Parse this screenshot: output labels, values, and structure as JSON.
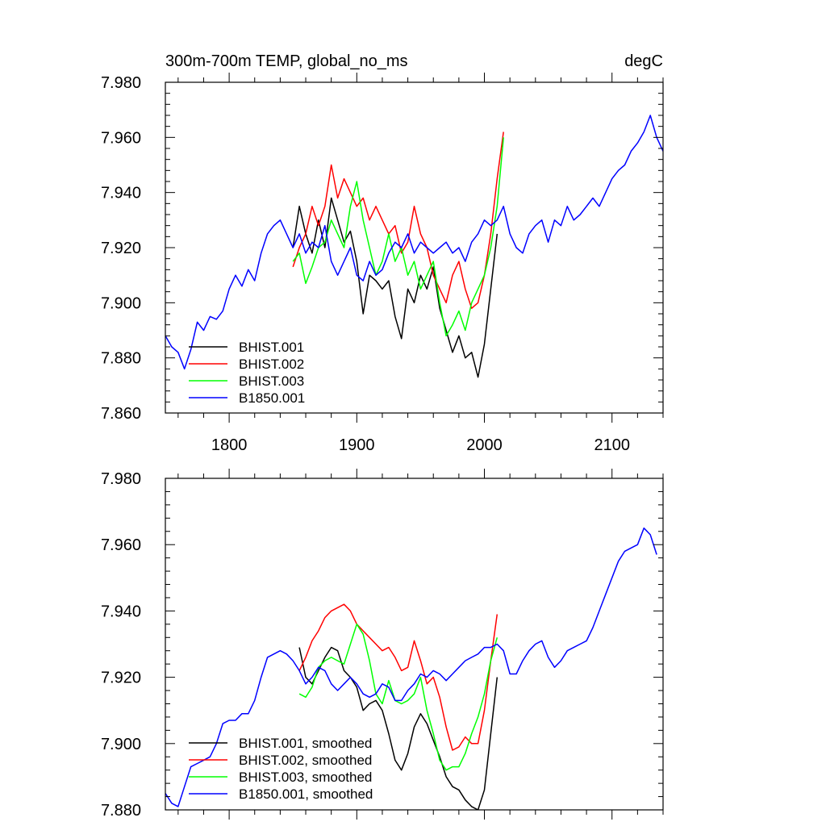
{
  "chart_data": [
    {
      "type": "line",
      "title": "300m-700m TEMP, global_no_ms",
      "units": "degC",
      "xlim": [
        1750,
        2140
      ],
      "ylim": [
        7.86,
        7.98
      ],
      "x_ticks": [
        1800,
        1900,
        2000,
        2100
      ],
      "x_tick_labels": [
        "1800",
        "1900",
        "2000",
        "2100"
      ],
      "y_ticks": [
        7.86,
        7.88,
        7.9,
        7.92,
        7.94,
        7.96,
        7.98
      ],
      "y_tick_labels": [
        "7.860",
        "7.880",
        "7.900",
        "7.920",
        "7.940",
        "7.960",
        "7.980"
      ],
      "legend_position": "bottom-left",
      "series": [
        {
          "name": "BHIST.001",
          "color": "#000000",
          "x": [
            1850,
            1855,
            1860,
            1865,
            1870,
            1875,
            1880,
            1885,
            1890,
            1895,
            1900,
            1905,
            1910,
            1915,
            1920,
            1925,
            1930,
            1935,
            1940,
            1945,
            1950,
            1955,
            1960,
            1965,
            1970,
            1975,
            1980,
            1985,
            1990,
            1995,
            2000,
            2005,
            2010
          ],
          "y": [
            7.92,
            7.935,
            7.925,
            7.918,
            7.93,
            7.92,
            7.938,
            7.93,
            7.922,
            7.926,
            7.915,
            7.896,
            7.91,
            7.908,
            7.905,
            7.908,
            7.895,
            7.887,
            7.905,
            7.9,
            7.91,
            7.905,
            7.913,
            7.898,
            7.89,
            7.882,
            7.888,
            7.88,
            7.882,
            7.873,
            7.885,
            7.905,
            7.925
          ]
        },
        {
          "name": "BHIST.002",
          "color": "#ff0000",
          "x": [
            1850,
            1855,
            1860,
            1865,
            1870,
            1875,
            1880,
            1885,
            1890,
            1895,
            1900,
            1905,
            1910,
            1915,
            1920,
            1925,
            1930,
            1935,
            1940,
            1945,
            1950,
            1955,
            1960,
            1965,
            1970,
            1975,
            1980,
            1985,
            1990,
            1995,
            2000,
            2005,
            2010,
            2015
          ],
          "y": [
            7.913,
            7.92,
            7.925,
            7.935,
            7.928,
            7.935,
            7.95,
            7.938,
            7.945,
            7.94,
            7.935,
            7.938,
            7.93,
            7.935,
            7.93,
            7.925,
            7.928,
            7.918,
            7.922,
            7.935,
            7.925,
            7.92,
            7.91,
            7.905,
            7.9,
            7.91,
            7.915,
            7.905,
            7.898,
            7.9,
            7.91,
            7.925,
            7.945,
            7.962
          ]
        },
        {
          "name": "BHIST.003",
          "color": "#00ff00",
          "x": [
            1850,
            1855,
            1860,
            1865,
            1870,
            1875,
            1880,
            1885,
            1890,
            1895,
            1900,
            1905,
            1910,
            1915,
            1920,
            1925,
            1930,
            1935,
            1940,
            1945,
            1950,
            1955,
            1960,
            1965,
            1970,
            1975,
            1980,
            1985,
            1990,
            1995,
            2000,
            2005,
            2010,
            2015
          ],
          "y": [
            7.915,
            7.918,
            7.907,
            7.913,
            7.92,
            7.922,
            7.93,
            7.925,
            7.92,
            7.935,
            7.944,
            7.93,
            7.92,
            7.91,
            7.915,
            7.925,
            7.915,
            7.92,
            7.91,
            7.915,
            7.905,
            7.91,
            7.915,
            7.9,
            7.888,
            7.892,
            7.897,
            7.89,
            7.9,
            7.905,
            7.91,
            7.92,
            7.935,
            7.96
          ]
        },
        {
          "name": "B1850.001",
          "color": "#0000ff",
          "x": [
            1750,
            1755,
            1760,
            1765,
            1770,
            1775,
            1780,
            1785,
            1790,
            1795,
            1800,
            1805,
            1810,
            1815,
            1820,
            1825,
            1830,
            1835,
            1840,
            1845,
            1850,
            1855,
            1860,
            1865,
            1870,
            1875,
            1880,
            1885,
            1890,
            1895,
            1900,
            1905,
            1910,
            1915,
            1920,
            1925,
            1930,
            1935,
            1940,
            1945,
            1950,
            1955,
            1960,
            1965,
            1970,
            1975,
            1980,
            1985,
            1990,
            1995,
            2000,
            2005,
            2010,
            2015,
            2020,
            2025,
            2030,
            2035,
            2040,
            2045,
            2050,
            2055,
            2060,
            2065,
            2070,
            2075,
            2080,
            2085,
            2090,
            2095,
            2100,
            2105,
            2110,
            2115,
            2120,
            2125,
            2130,
            2135,
            2140
          ],
          "y": [
            7.888,
            7.884,
            7.882,
            7.876,
            7.883,
            7.893,
            7.89,
            7.895,
            7.894,
            7.897,
            7.905,
            7.91,
            7.906,
            7.912,
            7.908,
            7.918,
            7.925,
            7.928,
            7.93,
            7.925,
            7.92,
            7.925,
            7.918,
            7.922,
            7.92,
            7.928,
            7.915,
            7.91,
            7.915,
            7.92,
            7.91,
            7.908,
            7.915,
            7.91,
            7.912,
            7.918,
            7.922,
            7.92,
            7.925,
            7.918,
            7.922,
            7.92,
            7.918,
            7.92,
            7.922,
            7.918,
            7.92,
            7.915,
            7.922,
            7.925,
            7.93,
            7.928,
            7.93,
            7.935,
            7.925,
            7.92,
            7.918,
            7.925,
            7.928,
            7.93,
            7.922,
            7.93,
            7.928,
            7.935,
            7.93,
            7.932,
            7.935,
            7.938,
            7.935,
            7.94,
            7.945,
            7.948,
            7.95,
            7.955,
            7.958,
            7.962,
            7.968,
            7.96,
            7.955
          ]
        }
      ]
    },
    {
      "type": "line",
      "xlim": [
        1750,
        2140
      ],
      "ylim": [
        7.88,
        7.98
      ],
      "x_ticks": [
        1800,
        1900,
        2000,
        2100
      ],
      "y_ticks": [
        7.88,
        7.9,
        7.92,
        7.94,
        7.96,
        7.98
      ],
      "y_tick_labels": [
        "7.880",
        "7.900",
        "7.920",
        "7.940",
        "7.960",
        "7.980"
      ],
      "legend_position": "bottom-left",
      "series": [
        {
          "name": "BHIST.001, smoothed",
          "color": "#000000",
          "x": [
            1855,
            1860,
            1865,
            1870,
            1875,
            1880,
            1885,
            1890,
            1895,
            1900,
            1905,
            1910,
            1915,
            1920,
            1925,
            1930,
            1935,
            1940,
            1945,
            1950,
            1955,
            1960,
            1965,
            1970,
            1975,
            1980,
            1985,
            1990,
            1995,
            2000,
            2005,
            2010
          ],
          "y": [
            7.929,
            7.92,
            7.918,
            7.922,
            7.926,
            7.929,
            7.928,
            7.922,
            7.92,
            7.917,
            7.91,
            7.912,
            7.913,
            7.91,
            7.903,
            7.895,
            7.892,
            7.897,
            7.905,
            7.909,
            7.906,
            7.901,
            7.896,
            7.89,
            7.887,
            7.886,
            7.883,
            7.881,
            7.88,
            7.886,
            7.903,
            7.92
          ]
        },
        {
          "name": "BHIST.002, smoothed",
          "color": "#ff0000",
          "x": [
            1855,
            1860,
            1865,
            1870,
            1875,
            1880,
            1885,
            1890,
            1895,
            1900,
            1905,
            1910,
            1915,
            1920,
            1925,
            1930,
            1935,
            1940,
            1945,
            1950,
            1955,
            1960,
            1965,
            1970,
            1975,
            1980,
            1985,
            1990,
            1995,
            2000,
            2005,
            2010
          ],
          "y": [
            7.922,
            7.926,
            7.931,
            7.934,
            7.938,
            7.94,
            7.941,
            7.942,
            7.94,
            7.936,
            7.934,
            7.932,
            7.93,
            7.928,
            7.929,
            7.926,
            7.922,
            7.923,
            7.931,
            7.925,
            7.918,
            7.92,
            7.914,
            7.905,
            7.898,
            7.899,
            7.902,
            7.9,
            7.9,
            7.91,
            7.925,
            7.939
          ]
        },
        {
          "name": "BHIST.003, smoothed",
          "color": "#00ff00",
          "x": [
            1855,
            1860,
            1865,
            1870,
            1875,
            1880,
            1885,
            1890,
            1895,
            1900,
            1905,
            1910,
            1915,
            1920,
            1925,
            1930,
            1935,
            1940,
            1945,
            1950,
            1955,
            1960,
            1965,
            1970,
            1975,
            1980,
            1985,
            1990,
            1995,
            2000,
            2005,
            2010
          ],
          "y": [
            7.915,
            7.914,
            7.917,
            7.923,
            7.925,
            7.926,
            7.925,
            7.924,
            7.93,
            7.936,
            7.933,
            7.925,
            7.915,
            7.912,
            7.919,
            7.913,
            7.912,
            7.913,
            7.915,
            7.92,
            7.91,
            7.903,
            7.895,
            7.892,
            7.893,
            7.893,
            7.897,
            7.903,
            7.908,
            7.915,
            7.925,
            7.932
          ]
        },
        {
          "name": "B1850.001, smoothed",
          "color": "#0000ff",
          "x": [
            1750,
            1755,
            1760,
            1765,
            1770,
            1775,
            1780,
            1785,
            1790,
            1795,
            1800,
            1805,
            1810,
            1815,
            1820,
            1825,
            1830,
            1835,
            1840,
            1845,
            1850,
            1855,
            1860,
            1865,
            1870,
            1875,
            1880,
            1885,
            1890,
            1895,
            1900,
            1905,
            1910,
            1915,
            1920,
            1925,
            1930,
            1935,
            1940,
            1945,
            1950,
            1955,
            1960,
            1965,
            1970,
            1975,
            1980,
            1985,
            1990,
            1995,
            2000,
            2005,
            2010,
            2015,
            2020,
            2025,
            2030,
            2035,
            2040,
            2045,
            2050,
            2055,
            2060,
            2065,
            2070,
            2075,
            2080,
            2085,
            2090,
            2095,
            2100,
            2105,
            2110,
            2115,
            2120,
            2125,
            2130,
            2135
          ],
          "y": [
            7.885,
            7.882,
            7.881,
            7.887,
            7.893,
            7.894,
            7.895,
            7.896,
            7.9,
            7.906,
            7.907,
            7.907,
            7.909,
            7.909,
            7.913,
            7.92,
            7.926,
            7.927,
            7.928,
            7.927,
            7.925,
            7.922,
            7.918,
            7.92,
            7.923,
            7.922,
            7.918,
            7.916,
            7.918,
            7.92,
            7.918,
            7.915,
            7.914,
            7.915,
            7.918,
            7.917,
            7.913,
            7.913,
            7.916,
            7.918,
            7.921,
            7.92,
            7.922,
            7.921,
            7.919,
            7.921,
            7.923,
            7.925,
            7.926,
            7.927,
            7.929,
            7.929,
            7.93,
            7.928,
            7.921,
            7.921,
            7.925,
            7.928,
            7.93,
            7.931,
            7.926,
            7.923,
            7.925,
            7.928,
            7.929,
            7.93,
            7.931,
            7.935,
            7.94,
            7.945,
            7.95,
            7.955,
            7.958,
            7.959,
            7.96,
            7.965,
            7.963,
            7.957
          ]
        }
      ]
    }
  ]
}
